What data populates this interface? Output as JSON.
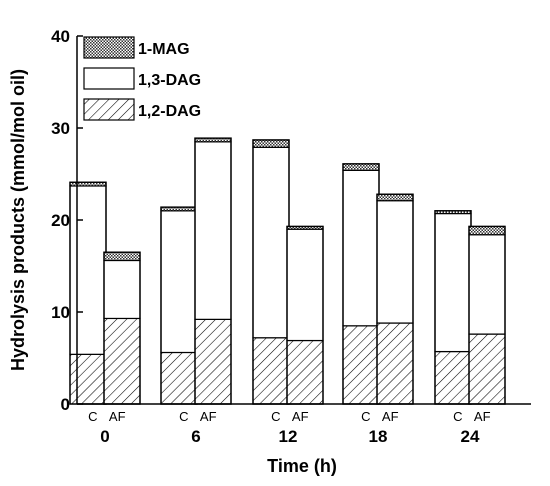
{
  "chart_data": {
    "type": "bar",
    "stacked": true,
    "xlabel": "Time (h)",
    "ylabel": "Hydrolysis products (mmol/mol oil)",
    "ylim": [
      0,
      40
    ],
    "yticks": [
      0,
      10,
      20,
      30,
      40
    ],
    "groups": [
      "0",
      "6",
      "12",
      "18",
      "24"
    ],
    "subcategories": [
      "C",
      "AF"
    ],
    "legend_position": "top-left",
    "series": [
      {
        "name": "1,2-DAG",
        "pattern": "diagonal-hatch",
        "values": [
          [
            5.4,
            9.3
          ],
          [
            5.6,
            9.2
          ],
          [
            7.2,
            6.9
          ],
          [
            8.5,
            8.8
          ],
          [
            5.7,
            7.6
          ]
        ]
      },
      {
        "name": "1,3-DAG",
        "pattern": "plain-white",
        "values": [
          [
            18.3,
            6.3
          ],
          [
            15.4,
            19.3
          ],
          [
            20.7,
            12.1
          ],
          [
            16.9,
            13.3
          ],
          [
            15.0,
            10.8
          ]
        ]
      },
      {
        "name": "1-MAG",
        "pattern": "crosshatch",
        "values": [
          [
            0.4,
            0.9
          ],
          [
            0.4,
            0.4
          ],
          [
            0.8,
            0.3
          ],
          [
            0.7,
            0.7
          ],
          [
            0.3,
            0.9
          ]
        ]
      }
    ],
    "legend_order": [
      "1-MAG",
      "1,3-DAG",
      "1,2-DAG"
    ]
  }
}
